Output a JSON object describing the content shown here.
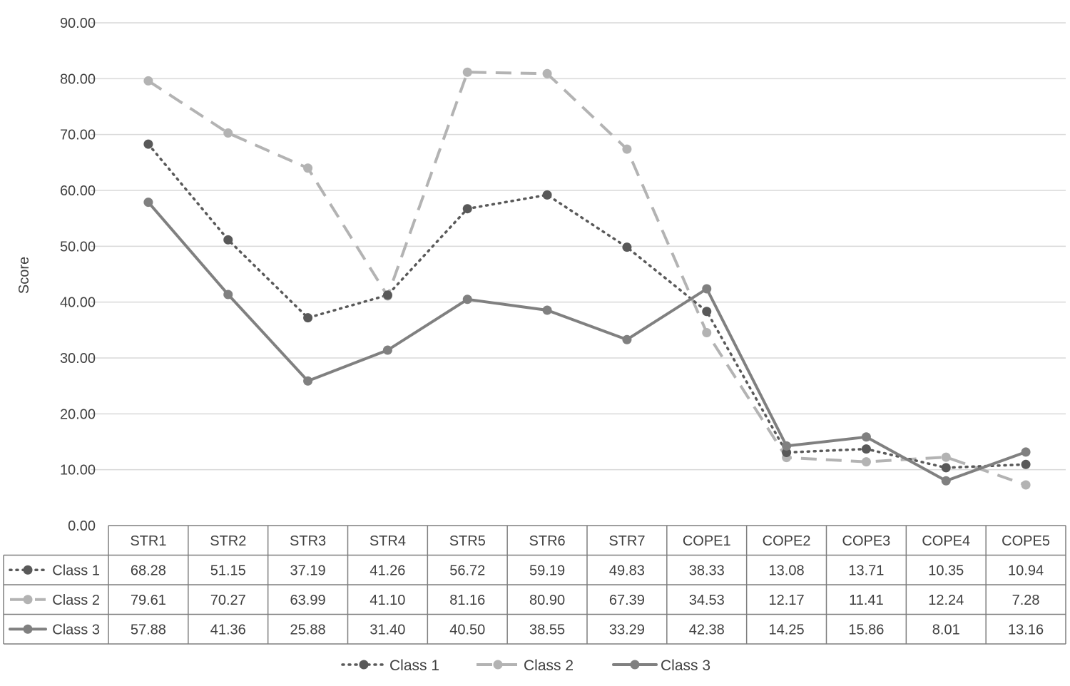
{
  "chart_data": {
    "type": "line",
    "ylabel": "Score",
    "xlabel": "",
    "ylim": [
      0,
      90
    ],
    "yticks": [
      "0.00",
      "10.00",
      "20.00",
      "30.00",
      "40.00",
      "50.00",
      "60.00",
      "70.00",
      "80.00",
      "90.00"
    ],
    "grid": true,
    "legend_position": "bottom",
    "data_table": true,
    "categories": [
      "STR1",
      "STR2",
      "STR3",
      "STR4",
      "STR5",
      "STR6",
      "STR7",
      "COPE1",
      "COPE2",
      "COPE3",
      "COPE4",
      "COPE5"
    ],
    "series": [
      {
        "name": "Class 1",
        "color": "#595959",
        "line_style": "dotted",
        "values": [
          68.28,
          51.15,
          37.19,
          41.26,
          56.72,
          59.19,
          49.83,
          38.33,
          13.08,
          13.71,
          10.35,
          10.94
        ],
        "labels": [
          "68.28",
          "51.15",
          "37.19",
          "41.26",
          "56.72",
          "59.19",
          "49.83",
          "38.33",
          "13.08",
          "13.71",
          "10.35",
          "10.94"
        ]
      },
      {
        "name": "Class 2",
        "color": "#b3b3b3",
        "line_style": "dashed",
        "values": [
          79.61,
          70.27,
          63.99,
          41.1,
          81.16,
          80.9,
          67.39,
          34.53,
          12.17,
          11.41,
          12.24,
          7.28
        ],
        "labels": [
          "79.61",
          "70.27",
          "63.99",
          "41.10",
          "81.16",
          "80.90",
          "67.39",
          "34.53",
          "12.17",
          "11.41",
          "12.24",
          "7.28"
        ]
      },
      {
        "name": "Class 3",
        "color": "#808080",
        "line_style": "solid",
        "values": [
          57.88,
          41.36,
          25.88,
          31.4,
          40.5,
          38.55,
          33.29,
          42.38,
          14.25,
          15.86,
          8.01,
          13.16
        ],
        "labels": [
          "57.88",
          "41.36",
          "25.88",
          "31.40",
          "40.50",
          "38.55",
          "33.29",
          "42.38",
          "14.25",
          "15.86",
          "8.01",
          "13.16"
        ]
      }
    ]
  }
}
